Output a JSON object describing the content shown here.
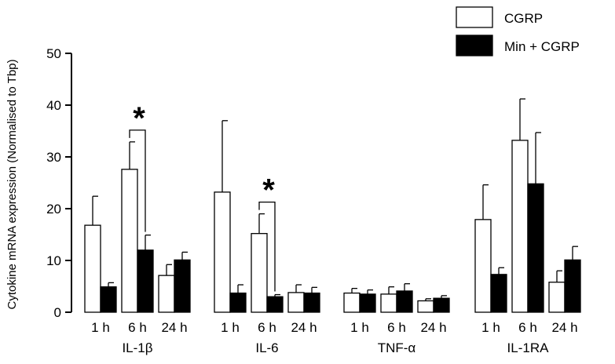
{
  "chart_data": {
    "type": "bar",
    "ylabel": "Cytokine mRNA expression (Normalised to Tbp)",
    "xlabel": "",
    "ylim": [
      0,
      50
    ],
    "yticks": [
      0,
      10,
      20,
      30,
      40,
      50
    ],
    "legend_position": "top-right",
    "groups": [
      {
        "label": "IL-1β",
        "categories": [
          "1 h",
          "6 h",
          "24 h"
        ]
      },
      {
        "label": "IL-6",
        "categories": [
          "1 h",
          "6 h",
          "24 h"
        ]
      },
      {
        "label": "TNF-α",
        "categories": [
          "1 h",
          "6 h",
          "24 h"
        ]
      },
      {
        "label": "IL-1RA",
        "categories": [
          "1 h",
          "6 h",
          "24 h"
        ]
      }
    ],
    "series": [
      {
        "name": "CGRP",
        "color": "#ffffff",
        "values": [
          16.8,
          27.6,
          7.1,
          23.2,
          15.2,
          3.8,
          3.7,
          3.5,
          2.2,
          17.9,
          33.2,
          5.8
        ],
        "errors": [
          5.6,
          5.3,
          2.1,
          13.8,
          3.8,
          1.5,
          0.9,
          1.4,
          0.4,
          6.7,
          8.0,
          2.2
        ]
      },
      {
        "name": "Min + CGRP",
        "color": "#000000",
        "values": [
          4.9,
          12.0,
          10.1,
          3.7,
          3.0,
          3.7,
          3.5,
          4.1,
          2.7,
          7.3,
          24.8,
          10.1
        ],
        "errors": [
          0.8,
          2.9,
          1.5,
          1.6,
          0.4,
          1.1,
          0.8,
          1.4,
          0.5,
          1.3,
          9.9,
          2.6
        ]
      }
    ],
    "significance": [
      {
        "group": 0,
        "category": 1,
        "text": "*"
      },
      {
        "group": 1,
        "category": 1,
        "text": "*"
      }
    ]
  }
}
